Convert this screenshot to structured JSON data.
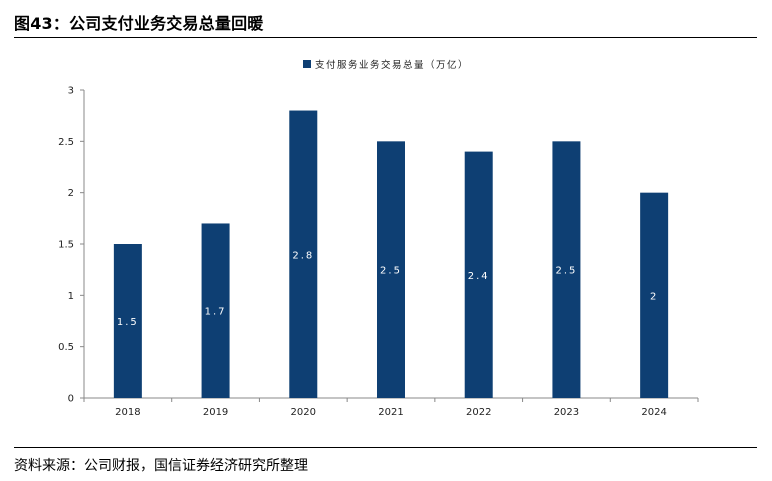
{
  "figure": {
    "title": "图43：公司支付业务交易总量回暖",
    "source": "资料来源：公司财报，国信证券经济研究所整理"
  },
  "colors": {
    "bar": "#0E3F73",
    "axis": "#888888"
  },
  "chart_data": {
    "type": "bar",
    "categories": [
      "2018",
      "2019",
      "2020",
      "2021",
      "2022",
      "2023",
      "2024"
    ],
    "series": [
      {
        "name": "支付服务业务交易总量（万亿）",
        "values": [
          1.5,
          1.7,
          2.8,
          2.5,
          2.4,
          2.5,
          2
        ],
        "labels": [
          "1.5",
          "1.7",
          "2.8",
          "2.5",
          "2.4",
          "2.5",
          "2"
        ]
      }
    ],
    "y_ticks": [
      "0",
      "0.5",
      "1",
      "1.5",
      "2",
      "2.5",
      "3"
    ],
    "ylim": [
      0,
      3
    ],
    "grid": false,
    "legend_position": "top-center"
  }
}
